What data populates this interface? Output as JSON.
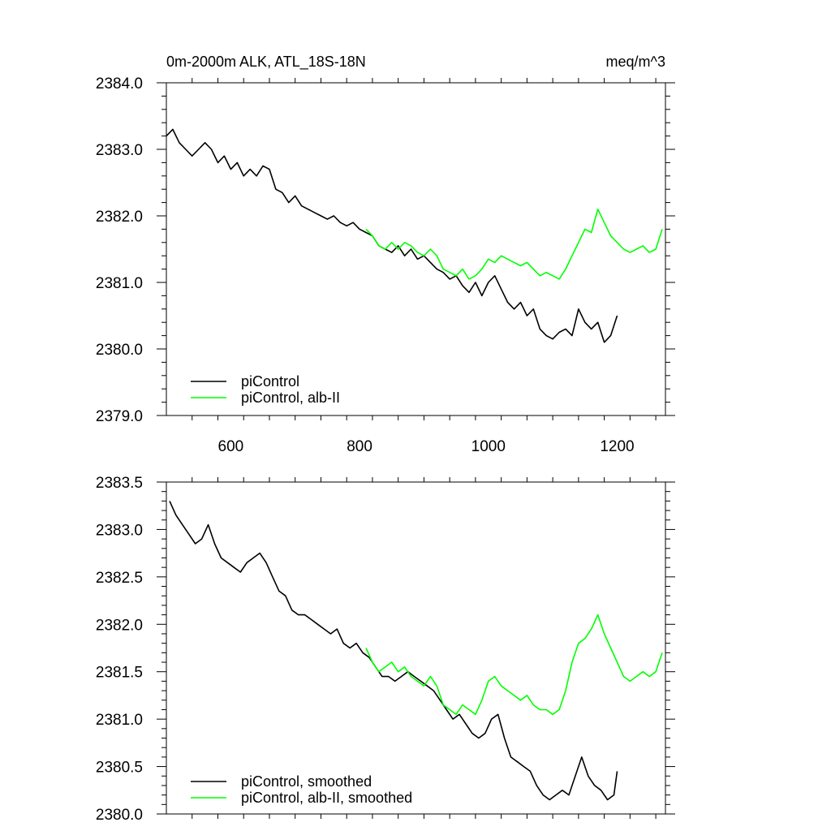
{
  "chart_data": [
    {
      "type": "line",
      "title": "0m-2000m ALK, ATL_18S-18N",
      "units": "meq/m^3",
      "xlim": [
        500,
        1275
      ],
      "ylim": [
        2379.0,
        2384.0
      ],
      "xticks": [
        600,
        800,
        1000,
        1200
      ],
      "xtick_labels": [
        "600",
        "800",
        "1000",
        "1200"
      ],
      "yticks": [
        2379.0,
        2380.0,
        2381.0,
        2382.0,
        2383.0,
        2384.0
      ],
      "ytick_labels": [
        "2379.0",
        "2380.0",
        "2381.0",
        "2382.0",
        "2383.0",
        "2384.0"
      ],
      "grid": false,
      "legend_position": "bottom-left",
      "series": [
        {
          "name": "piControl",
          "color": "#000000",
          "x": [
            500,
            510,
            520,
            530,
            540,
            550,
            560,
            570,
            580,
            590,
            600,
            610,
            620,
            630,
            640,
            650,
            660,
            670,
            680,
            690,
            700,
            710,
            720,
            730,
            740,
            750,
            760,
            770,
            780,
            790,
            800,
            810,
            820,
            830,
            840,
            850,
            860,
            870,
            880,
            890,
            900,
            910,
            920,
            930,
            940,
            950,
            960,
            970,
            980,
            990,
            1000,
            1010,
            1020,
            1030,
            1040,
            1050,
            1060,
            1070,
            1080,
            1090,
            1100,
            1110,
            1120,
            1130,
            1140,
            1150,
            1160,
            1170,
            1180,
            1190,
            1200
          ],
          "y": [
            2383.2,
            2383.3,
            2383.1,
            2383.0,
            2382.9,
            2383.0,
            2383.1,
            2383.0,
            2382.8,
            2382.9,
            2382.7,
            2382.8,
            2382.6,
            2382.7,
            2382.6,
            2382.75,
            2382.7,
            2382.4,
            2382.35,
            2382.2,
            2382.3,
            2382.15,
            2382.1,
            2382.05,
            2382.0,
            2381.95,
            2382.0,
            2381.9,
            2381.85,
            2381.9,
            2381.8,
            2381.75,
            2381.7,
            2381.55,
            2381.5,
            2381.45,
            2381.55,
            2381.4,
            2381.5,
            2381.35,
            2381.4,
            2381.3,
            2381.2,
            2381.15,
            2381.05,
            2381.1,
            2380.95,
            2380.85,
            2381.0,
            2380.8,
            2381.0,
            2381.1,
            2380.9,
            2380.7,
            2380.6,
            2380.7,
            2380.5,
            2380.6,
            2380.3,
            2380.2,
            2380.15,
            2380.25,
            2380.3,
            2380.2,
            2380.6,
            2380.4,
            2380.3,
            2380.4,
            2380.1,
            2380.2,
            2380.5
          ]
        },
        {
          "name": "piControl, alb-II",
          "color": "#00ff00",
          "x": [
            810,
            820,
            830,
            840,
            850,
            860,
            870,
            880,
            890,
            900,
            910,
            920,
            930,
            940,
            950,
            960,
            970,
            980,
            990,
            1000,
            1010,
            1020,
            1030,
            1040,
            1050,
            1060,
            1070,
            1080,
            1090,
            1100,
            1110,
            1120,
            1130,
            1140,
            1150,
            1160,
            1170,
            1180,
            1190,
            1200,
            1210,
            1220,
            1230,
            1240,
            1250,
            1260,
            1270
          ],
          "y": [
            2381.8,
            2381.7,
            2381.55,
            2381.5,
            2381.6,
            2381.5,
            2381.6,
            2381.55,
            2381.45,
            2381.4,
            2381.5,
            2381.4,
            2381.2,
            2381.15,
            2381.1,
            2381.2,
            2381.05,
            2381.1,
            2381.2,
            2381.35,
            2381.3,
            2381.4,
            2381.35,
            2381.3,
            2381.25,
            2381.3,
            2381.2,
            2381.1,
            2381.15,
            2381.1,
            2381.05,
            2381.2,
            2381.4,
            2381.6,
            2381.8,
            2381.75,
            2382.1,
            2381.9,
            2381.7,
            2381.6,
            2381.5,
            2381.45,
            2381.5,
            2381.55,
            2381.45,
            2381.5,
            2381.8
          ]
        }
      ]
    },
    {
      "type": "line",
      "xlim": [
        500,
        1275
      ],
      "ylim": [
        2380.0,
        2383.5
      ],
      "xticks": [
        600,
        800,
        1000,
        1200
      ],
      "yticks": [
        2380.0,
        2380.5,
        2381.0,
        2381.5,
        2382.0,
        2382.5,
        2383.0,
        2383.5
      ],
      "ytick_labels": [
        "2380.0",
        "2380.5",
        "2381.0",
        "2381.5",
        "2382.0",
        "2382.5",
        "2383.0",
        "2383.5"
      ],
      "grid": false,
      "legend_position": "bottom-left",
      "series": [
        {
          "name": "piControl, smoothed",
          "color": "#000000",
          "x": [
            505,
            515,
            525,
            535,
            545,
            555,
            565,
            575,
            585,
            595,
            605,
            615,
            625,
            635,
            645,
            655,
            665,
            675,
            685,
            695,
            705,
            715,
            725,
            735,
            745,
            755,
            765,
            775,
            785,
            795,
            805,
            815,
            825,
            835,
            845,
            855,
            865,
            875,
            885,
            895,
            905,
            915,
            925,
            935,
            945,
            955,
            965,
            975,
            985,
            995,
            1005,
            1015,
            1025,
            1035,
            1045,
            1055,
            1065,
            1075,
            1085,
            1095,
            1105,
            1115,
            1125,
            1135,
            1145,
            1155,
            1165,
            1175,
            1185,
            1195,
            1200
          ],
          "y": [
            2383.3,
            2383.15,
            2383.05,
            2382.95,
            2382.85,
            2382.9,
            2383.05,
            2382.85,
            2382.7,
            2382.65,
            2382.6,
            2382.55,
            2382.65,
            2382.7,
            2382.75,
            2382.65,
            2382.5,
            2382.35,
            2382.3,
            2382.15,
            2382.1,
            2382.1,
            2382.05,
            2382.0,
            2381.95,
            2381.9,
            2381.95,
            2381.8,
            2381.75,
            2381.8,
            2381.7,
            2381.65,
            2381.55,
            2381.45,
            2381.45,
            2381.4,
            2381.45,
            2381.5,
            2381.45,
            2381.4,
            2381.35,
            2381.3,
            2381.2,
            2381.1,
            2381.0,
            2381.05,
            2380.95,
            2380.85,
            2380.8,
            2380.85,
            2381.0,
            2381.05,
            2380.8,
            2380.6,
            2380.55,
            2380.5,
            2380.45,
            2380.3,
            2380.2,
            2380.15,
            2380.2,
            2380.25,
            2380.2,
            2380.4,
            2380.6,
            2380.4,
            2380.3,
            2380.25,
            2380.15,
            2380.2,
            2380.45
          ]
        },
        {
          "name": "piControl, alb-II, smoothed",
          "color": "#00ff00",
          "x": [
            810,
            820,
            830,
            840,
            850,
            860,
            870,
            880,
            890,
            900,
            910,
            920,
            930,
            940,
            950,
            960,
            970,
            980,
            990,
            1000,
            1010,
            1020,
            1030,
            1040,
            1050,
            1060,
            1070,
            1080,
            1090,
            1100,
            1110,
            1120,
            1130,
            1140,
            1150,
            1160,
            1170,
            1180,
            1190,
            1200,
            1210,
            1220,
            1230,
            1240,
            1250,
            1260,
            1270
          ],
          "y": [
            2381.75,
            2381.6,
            2381.5,
            2381.55,
            2381.6,
            2381.5,
            2381.55,
            2381.45,
            2381.4,
            2381.35,
            2381.45,
            2381.35,
            2381.15,
            2381.1,
            2381.05,
            2381.15,
            2381.1,
            2381.05,
            2381.2,
            2381.4,
            2381.45,
            2381.35,
            2381.3,
            2381.25,
            2381.2,
            2381.25,
            2381.15,
            2381.1,
            2381.1,
            2381.05,
            2381.1,
            2381.3,
            2381.6,
            2381.8,
            2381.85,
            2381.95,
            2382.1,
            2381.9,
            2381.75,
            2381.6,
            2381.45,
            2381.4,
            2381.45,
            2381.5,
            2381.45,
            2381.5,
            2381.7
          ]
        }
      ]
    }
  ]
}
